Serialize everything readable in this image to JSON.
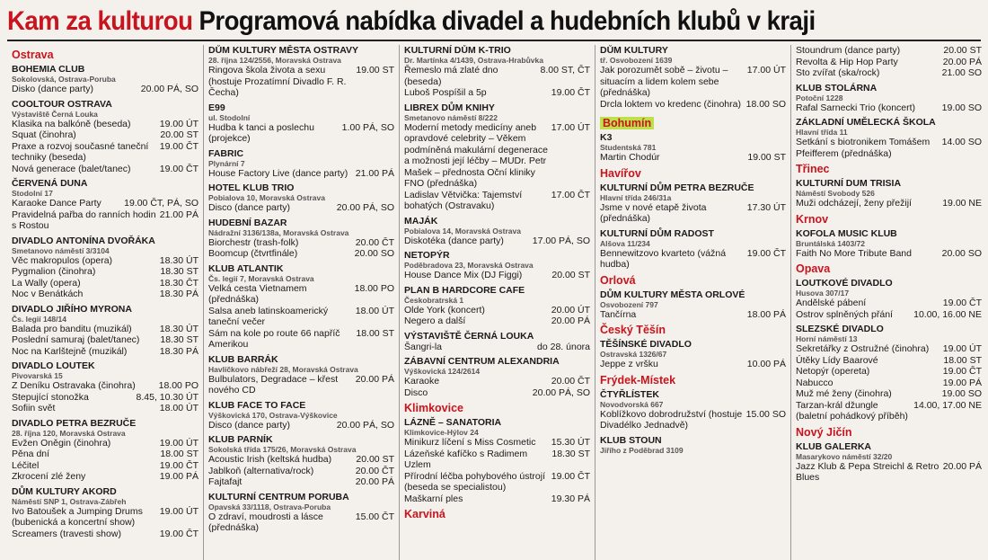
{
  "title": {
    "red": "Kam za kulturou",
    "black": "Programová nabídka divadel a hudebních klubů v kraji"
  },
  "columns": [
    [
      {
        "region": "Ostrava"
      },
      {
        "name": "BOHEMIA CLUB",
        "addr": "Sokolovská, Ostrava-Poruba",
        "events": [
          {
            "t": "Disko (dance party)",
            "w": "20.00 PÁ, SO"
          }
        ]
      },
      {
        "name": "COOLTOUR OSTRAVA",
        "addr": "Výstaviště Černá Louka",
        "events": [
          {
            "t": "Klasika na balkóně (beseda)",
            "w": "19.00 ÚT"
          },
          {
            "t": "Squat (činohra)",
            "w": "20.00 ST"
          },
          {
            "t": "Praxe a rozvoj současné taneční techniky (beseda)",
            "w": "19.00 ČT"
          },
          {
            "t": "Nová generace (balet/tanec)",
            "w": "19.00 ČT"
          }
        ]
      },
      {
        "name": "ČERVENÁ DUNA",
        "addr": "Stodolní 17",
        "events": [
          {
            "t": "Karaoke Dance Party",
            "w": "19.00 ČT, PÁ, SO"
          },
          {
            "t": "Pravidelná pařba do ranních hodin s Rostou",
            "w": "21.00 PÁ"
          }
        ]
      },
      {
        "name": "DIVADLO ANTONÍNA DVOŘÁKA",
        "addr": "Smetanovo náměstí 3/3104",
        "events": [
          {
            "t": "Věc makropulos (opera)",
            "w": "18.30 ÚT"
          },
          {
            "t": "Pygmalion (činohra)",
            "w": "18.30 ST"
          },
          {
            "t": "La Wally (opera)",
            "w": "18.30 ČT"
          },
          {
            "t": "Noc v Benátkách",
            "w": "18.30 PÁ"
          }
        ]
      },
      {
        "name": "DIVADLO JIŘÍHO MYRONA",
        "addr": "Čs. legií 148/14",
        "events": [
          {
            "t": "Balada pro banditu (muzikál)",
            "w": "18.30 ÚT"
          },
          {
            "t": "Poslední samuraj (balet/tanec)",
            "w": "18.30 ST"
          },
          {
            "t": "Noc na Karlštejně (muzikál)",
            "w": "18.30 PÁ"
          }
        ]
      },
      {
        "name": "DIVADLO LOUTEK",
        "addr": "Pivovarská 15",
        "events": [
          {
            "t": "Z Deníku Ostravaka (činohra)",
            "w": "18.00 PO"
          },
          {
            "t": "Stepující stonožka",
            "w": "8.45, 10.30 ÚT"
          },
          {
            "t": "Sofiin svět",
            "w": "18.00 ÚT"
          }
        ]
      },
      {
        "name": "DIVADLO PETRA BEZRUČE",
        "addr": "28. října 120, Moravská Ostrava",
        "events": [
          {
            "t": "Evžen Oněgin (činohra)",
            "w": "19.00 ÚT"
          },
          {
            "t": "Pěna dní",
            "w": "18.00 ST"
          },
          {
            "t": "Léčitel",
            "w": "19.00 ČT"
          },
          {
            "t": "Zkrocení zlé ženy",
            "w": "19.00 PÁ"
          }
        ]
      },
      {
        "name": "DŮM KULTURY AKORD",
        "addr": "Náměstí SNP 1, Ostrava-Zábřeh",
        "events": [
          {
            "t": "Ivo Batoušek a Jumping Drums (bubenická a koncertní show)",
            "w": "19.00 ÚT"
          },
          {
            "t": "Screamers (travesti show)",
            "w": "19.00 ČT"
          }
        ]
      }
    ],
    [
      {
        "name": "DŮM KULTURY MĚSTA OSTRAVY",
        "addr": "28. října 124/2556, Moravská Ostrava",
        "events": [
          {
            "t": "Ringova škola života a sexu (hostuje Prozatímní Divadlo F. R. Čecha)",
            "w": "19.00 ST"
          }
        ]
      },
      {
        "name": "E99",
        "addr": "ul. Stodolní",
        "events": [
          {
            "t": "Hudba k tanci a poslechu (projekce)",
            "w": "1.00 PÁ, SO"
          }
        ]
      },
      {
        "name": "FABRIC",
        "addr": "Plynární 7",
        "events": [
          {
            "t": "House Factory Live (dance party)",
            "w": "21.00 PÁ"
          }
        ]
      },
      {
        "name": "HOTEL KLUB TRIO",
        "addr": "Pobialova 10, Moravská Ostrava",
        "events": [
          {
            "t": "Disco (dance party)",
            "w": "20.00 PÁ, SO"
          }
        ]
      },
      {
        "name": "HUDEBNÍ BAZAR",
        "addr": "Nádražní 3136/138a, Moravská Ostrava",
        "events": [
          {
            "t": "Biorchestr (trash-folk)",
            "w": "20.00 ČT"
          },
          {
            "t": "Boomcup (čtvrtfinále)",
            "w": "20.00 SO"
          }
        ]
      },
      {
        "name": "KLUB ATLANTIK",
        "addr": "Čs. legií 7, Moravská Ostrava",
        "events": [
          {
            "t": "Velká cesta Vietnamem (přednáška)",
            "w": "18.00 PO"
          },
          {
            "t": "Salsa aneb latinskoamerický taneční večer",
            "w": "18.00 ÚT"
          },
          {
            "t": "Sám na kole po route 66 napříč Amerikou",
            "w": "18.00 ST"
          }
        ]
      },
      {
        "name": "KLUB BARRÁK",
        "addr": "Havlíčkovo nábřeží 28, Moravská Ostrava",
        "events": [
          {
            "t": "Bulbulators, Degradace – křest nového CD",
            "w": "20.00 PÁ"
          }
        ]
      },
      {
        "name": "KLUB FACE TO FACE",
        "addr": "Výškovická 170, Ostrava-Výškovice",
        "events": [
          {
            "t": "Disco (dance party)",
            "w": "20.00 PÁ, SO"
          }
        ]
      },
      {
        "name": "KLUB PARNÍK",
        "addr": "Sokolská třída 175/26, Moravská Ostrava",
        "events": [
          {
            "t": "Acoustic Irish (keltská hudba)",
            "w": "20.00 ST"
          },
          {
            "t": "Jablkoň (alternativa/rock)",
            "w": "20.00 ČT"
          },
          {
            "t": "Fajtafajt",
            "w": "20.00 PÁ"
          }
        ]
      },
      {
        "name": "KULTURNÍ CENTRUM PORUBA",
        "addr": "Opavská 33/1118, Ostrava-Poruba",
        "events": [
          {
            "t": "O zdraví, moudrosti a lásce (přednáška)",
            "w": "15.00 ČT"
          }
        ]
      }
    ],
    [
      {
        "name": "KULTURNÍ DŮM K-TRIO",
        "addr": "Dr. Martínka 4/1439, Ostrava-Hrabůvka",
        "events": [
          {
            "t": "Řemeslo má zlaté dno (beseda)",
            "w": "8.00 ST, ČT"
          },
          {
            "t": "Luboš Pospíšil a 5p",
            "w": "19.00 ČT"
          }
        ]
      },
      {
        "name": "LIBREX DŮM KNIHY",
        "addr": "Smetanovo náměstí 8/222",
        "events": [
          {
            "t": "Moderní metody medicíny aneb opravdové celebrity – Věkem podmíněná makulární degenerace a možnosti její léčby – MUDr. Petr Mašek – přednosta Oční kliniky FNO (přednáška)",
            "w": "17.00 ÚT"
          },
          {
            "t": "Ladislav Větvička: Tajemství bohatých (Ostravaku)",
            "w": "17.00 ČT"
          }
        ]
      },
      {
        "name": "MAJÁK",
        "addr": "Pobialova 14, Moravská Ostrava",
        "events": [
          {
            "t": "Diskotéka (dance party)",
            "w": "17.00 PÁ, SO"
          }
        ]
      },
      {
        "name": "NETOPÝR",
        "addr": "Poděbradova 23, Moravská Ostrava",
        "events": [
          {
            "t": "House Dance Mix (DJ Figgi)",
            "w": "20.00 ST"
          }
        ]
      },
      {
        "name": "PLAN B HARDCORE CAFE",
        "addr": "Českobratrská 1",
        "events": [
          {
            "t": "Olde York (koncert)",
            "w": "20.00 ÚT"
          },
          {
            "t": "Negero a další",
            "w": "20.00 PÁ"
          }
        ]
      },
      {
        "name": "VÝSTAVIŠTĚ ČERNÁ LOUKA",
        "addr": "",
        "events": [
          {
            "t": "Šangri-la",
            "w": "do 28. února"
          }
        ]
      },
      {
        "name": "ZÁBAVNÍ CENTRUM ALEXANDRIA",
        "addr": "Výškovická 124/2614",
        "events": [
          {
            "t": "Karaoke",
            "w": "20.00 ČT"
          },
          {
            "t": "Disco",
            "w": "20.00 PÁ, SO"
          }
        ]
      },
      {
        "region": "Klimkovice"
      },
      {
        "name": "LÁZNĚ – SANATORIA",
        "addr": "Klimkovice-Hýlov 24",
        "events": [
          {
            "t": "Minikurz líčení s Miss Cosmetic",
            "w": "15.30 ÚT"
          },
          {
            "t": "Lázeňské kafíčko s Radimem Uzlem",
            "w": "18.30 ST"
          },
          {
            "t": "Přírodní léčba pohybového ústrojí (beseda se specialistou)",
            "w": "19.00 ČT"
          },
          {
            "t": "Maškarní ples",
            "w": "19.30 PÁ"
          }
        ]
      },
      {
        "region": "Karviná"
      }
    ],
    [
      {
        "name": "DŮM KULTURY",
        "addr": "tř. Osvobození 1639",
        "events": [
          {
            "t": "Jak porozumět sobě – životu – situacím a lidem kolem sebe (přednáška)",
            "w": "17.00 ÚT"
          },
          {
            "t": "Drcla loktem vo kredenc (činohra)",
            "w": "18.00 SO"
          }
        ]
      },
      {
        "region": "Bohumín",
        "hl": true
      },
      {
        "name": "K3",
        "addr": "Studentská 781",
        "events": [
          {
            "t": "Martin Chodúr",
            "w": "19.00 ST"
          }
        ]
      },
      {
        "region": "Havířov"
      },
      {
        "name": "KULTURNÍ DŮM PETRA BEZRUČE",
        "addr": "Hlavní třída 246/31a",
        "events": [
          {
            "t": "Jsme v nové etapě života (přednáška)",
            "w": "17.30 ÚT"
          }
        ]
      },
      {
        "name": "KULTURNÍ DŮM RADOST",
        "addr": "Alšova 11/234",
        "events": [
          {
            "t": "Bennewitzovo kvarteto (vážná hudba)",
            "w": "19.00 ČT"
          }
        ]
      },
      {
        "region": "Orlová"
      },
      {
        "name": "DŮM KULTURY MĚSTA ORLOVÉ",
        "addr": "Osvobození 797",
        "events": [
          {
            "t": "Tančírna",
            "w": "18.00 PÁ"
          }
        ]
      },
      {
        "region": "Český Těšín"
      },
      {
        "name": "TĚŠÍNSKÉ DIVADLO",
        "addr": "Ostravská 1326/67",
        "events": [
          {
            "t": "Jeppe z vršku",
            "w": "10.00 PÁ"
          }
        ]
      },
      {
        "region": "Frýdek-Místek"
      },
      {
        "name": "ČTYŘLÍSTEK",
        "addr": "Novodvorská 667",
        "events": [
          {
            "t": "Koblížkovo dobrodružství (hostuje Divadélko Jednadvě)",
            "w": "15.00 SO"
          }
        ]
      },
      {
        "name": "KLUB STOUN",
        "addr": "Jiřího z Poděbrad 3109",
        "events": []
      }
    ],
    [
      {
        "name": "",
        "addr": "",
        "events": [
          {
            "t": "Stoundrum (dance party)",
            "w": "20.00 ST"
          },
          {
            "t": "Revolta & Hip Hop Party",
            "w": "20.00 PÁ"
          },
          {
            "t": "Sto zvířat (ska/rock)",
            "w": "21.00 SO"
          }
        ]
      },
      {
        "name": "KLUB STOLÁRNA",
        "addr": "Potoční 1228",
        "events": [
          {
            "t": "Rafal Sarnecki Trio (koncert)",
            "w": "19.00 SO"
          }
        ]
      },
      {
        "name": "ZÁKLADNÍ UMĚLECKÁ ŠKOLA",
        "addr": "Hlavní třída 11",
        "events": [
          {
            "t": "Setkání s biotronikem Tomášem Pfeifferem (přednáška)",
            "w": "14.00 SO"
          }
        ]
      },
      {
        "region": "Třinec"
      },
      {
        "name": "KULTURNÍ DUM TRISIA",
        "addr": "Náměstí Svobody 526",
        "events": [
          {
            "t": "Muži odcházejí, ženy přežijí",
            "w": "19.00 NE"
          }
        ]
      },
      {
        "region": "Krnov"
      },
      {
        "name": "KOFOLA MUSIC KLUB",
        "addr": "Bruntálská 1403/72",
        "events": [
          {
            "t": "Faith No More Tribute Band",
            "w": "20.00 SO"
          }
        ]
      },
      {
        "region": "Opava"
      },
      {
        "name": "LOUTKOVÉ DIVADLO",
        "addr": "Husova 307/17",
        "events": [
          {
            "t": "Andělské pábení",
            "w": "19.00 ČT"
          },
          {
            "t": "Ostrov splněných přání",
            "w": "10.00, 16.00 NE"
          }
        ]
      },
      {
        "name": "SLEZSKÉ DIVADLO",
        "addr": "Horní náměstí 13",
        "events": [
          {
            "t": "Sekretářky z Ostružné (činohra)",
            "w": "19.00 ÚT"
          },
          {
            "t": "Útěky Lídy Baarové",
            "w": "18.00 ST"
          },
          {
            "t": "Netopýr (opereta)",
            "w": "19.00 ČT"
          },
          {
            "t": "Nabucco",
            "w": "19.00 PÁ"
          },
          {
            "t": "Muž mé ženy (činohra)",
            "w": "19.00 SO"
          },
          {
            "t": "Tarzan-král džungle (baletní pohádkový příběh)",
            "w": "14.00, 17.00 NE"
          }
        ]
      },
      {
        "region": "Nový Jičín"
      },
      {
        "name": "KLUB GALERKA",
        "addr": "Masarykovo náměstí 32/20",
        "events": [
          {
            "t": "Jazz Klub & Pepa Streichl & Retro Blues",
            "w": "20.00 PÁ"
          }
        ]
      }
    ]
  ]
}
